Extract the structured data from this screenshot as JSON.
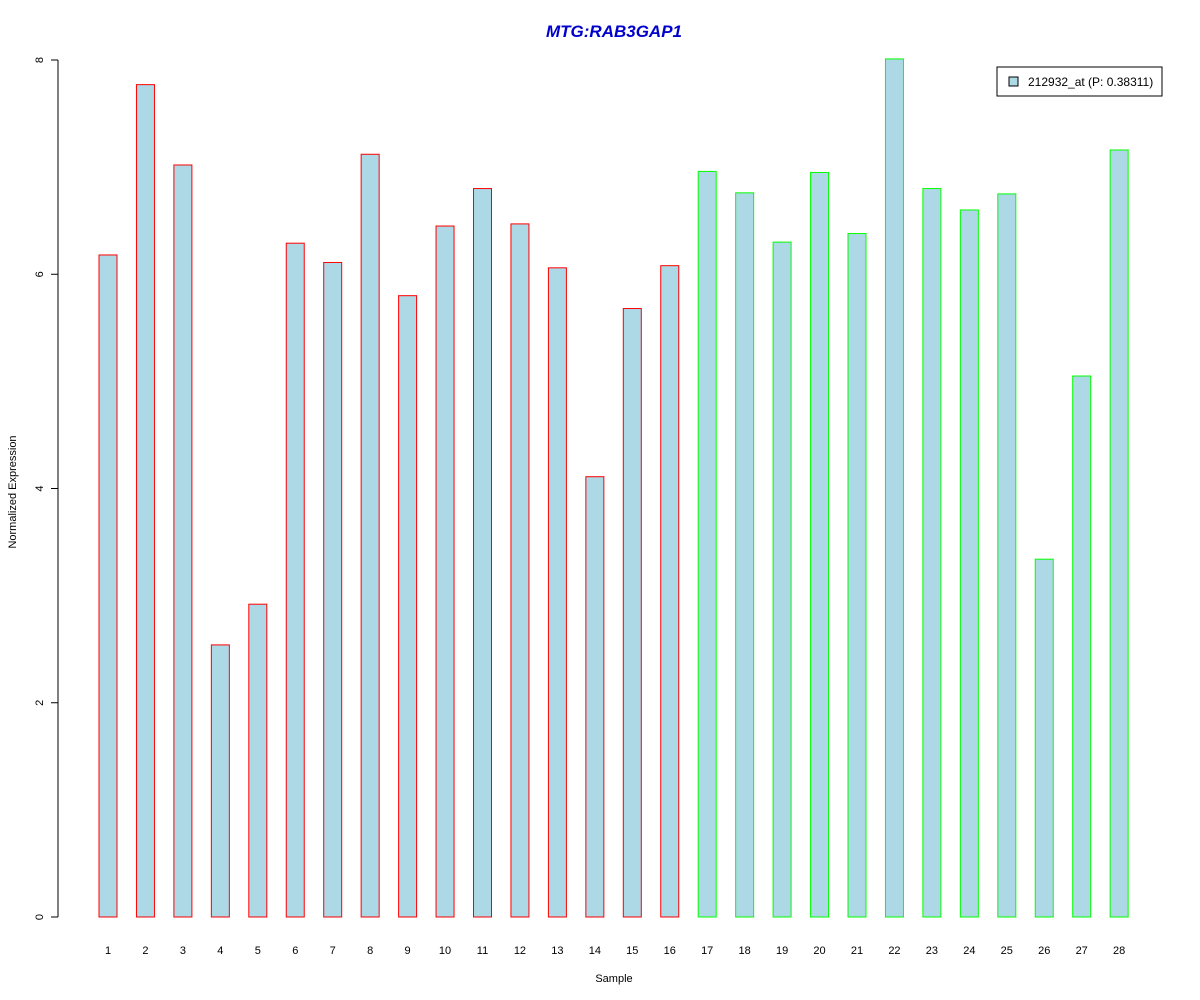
{
  "chart_data": {
    "type": "bar",
    "title": "MTG:RAB3GAP1",
    "xlabel": "Sample",
    "ylabel": "Normalized Expression",
    "ylim": [
      0,
      8
    ],
    "yticks": [
      "0",
      "2",
      "4",
      "6",
      "8"
    ],
    "categories": [
      "1",
      "2",
      "3",
      "4",
      "5",
      "6",
      "7",
      "8",
      "9",
      "10",
      "11",
      "12",
      "13",
      "14",
      "15",
      "16",
      "17",
      "18",
      "19",
      "20",
      "21",
      "22",
      "23",
      "24",
      "25",
      "26",
      "27",
      "28"
    ],
    "values": [
      6.18,
      7.77,
      7.02,
      2.54,
      2.92,
      6.29,
      6.11,
      7.12,
      5.8,
      6.45,
      6.8,
      6.47,
      6.06,
      4.11,
      5.68,
      6.08,
      6.96,
      6.76,
      6.3,
      6.95,
      6.38,
      8.01,
      6.8,
      6.6,
      6.75,
      3.34,
      5.05,
      7.16
    ],
    "groups": [
      "red",
      "red",
      "red",
      "red",
      "red",
      "red",
      "red",
      "red",
      "red",
      "red",
      "red",
      "red",
      "red",
      "red",
      "red",
      "red",
      "green",
      "green",
      "green",
      "green",
      "green",
      "green",
      "green",
      "green",
      "green",
      "green",
      "green",
      "green"
    ],
    "legend": {
      "label": "212932_at (P: 0.38311)",
      "position": "top-right"
    },
    "grid": false,
    "colors": {
      "bar_fill": "#add8e6",
      "border_red": "#ff0000",
      "border_green": "#00ff00",
      "title": "#0000cd",
      "axis": "#000000"
    }
  }
}
